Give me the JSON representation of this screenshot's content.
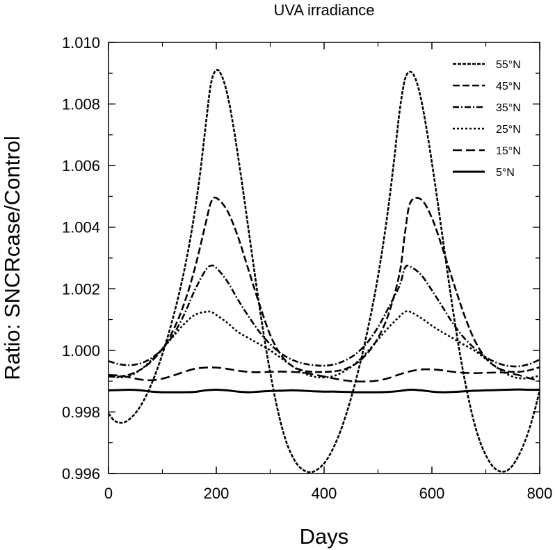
{
  "chart_data": {
    "type": "line",
    "title": "UVA irradiance",
    "xlabel": "Days",
    "ylabel": "Ratio: SNCRcase/Control",
    "xlim": [
      0,
      800
    ],
    "ylim": [
      0.996,
      1.01
    ],
    "xticks": [
      0,
      200,
      400,
      600,
      800
    ],
    "xtick_labels": [
      "0",
      "200",
      "400",
      "600",
      "800"
    ],
    "yticks": [
      0.996,
      0.998,
      1.0,
      1.002,
      1.004,
      1.006,
      1.008,
      1.01
    ],
    "ytick_labels": [
      "0.996",
      "0.998",
      "1.000",
      "1.002",
      "1.004",
      "1.006",
      "1.008",
      "1.010"
    ],
    "grid": false,
    "legend_position": "top-right",
    "series": [
      {
        "name": "55°N",
        "dash": "5,2",
        "width": 2.6,
        "x": [
          0,
          10,
          20,
          30,
          40,
          50,
          60,
          70,
          80,
          90,
          100,
          110,
          120,
          130,
          140,
          150,
          160,
          170,
          180,
          190,
          200,
          210,
          220,
          230,
          240,
          250,
          260,
          270,
          280,
          290,
          300,
          310,
          320,
          330,
          340,
          350,
          360,
          370,
          380,
          390,
          400,
          410,
          420,
          430,
          440,
          450,
          460,
          470,
          480,
          490,
          500,
          510,
          520,
          530,
          540,
          550,
          560,
          570,
          580,
          590,
          600,
          610,
          620,
          630,
          640,
          650,
          660,
          670,
          680,
          690,
          700,
          710,
          720,
          730,
          740,
          750,
          760,
          770,
          780,
          790,
          800
        ],
        "y": [
          0.99795,
          0.99773,
          0.99765,
          0.99767,
          0.99778,
          0.99796,
          0.99821,
          0.99853,
          0.99892,
          0.99937,
          0.99988,
          1.00045,
          1.00108,
          1.00177,
          1.00255,
          1.00345,
          1.0045,
          1.00575,
          1.00725,
          1.00865,
          1.0091,
          1.00892,
          1.00835,
          1.00745,
          1.00635,
          1.00515,
          1.0039,
          1.00265,
          1.00143,
          1.0003,
          0.99928,
          0.99838,
          0.99762,
          0.99702,
          0.9966,
          0.9963,
          0.99613,
          0.99605,
          0.99606,
          0.99616,
          0.99633,
          0.99659,
          0.99694,
          0.99736,
          0.99787,
          0.99845,
          0.9991,
          0.99981,
          1.0006,
          1.00145,
          1.0024,
          1.0035,
          1.00475,
          1.0062,
          1.00775,
          1.0088,
          1.00905,
          1.0088,
          1.00815,
          1.0072,
          1.0061,
          1.0049,
          1.00365,
          1.0024,
          1.0012,
          1.0001,
          0.99912,
          0.99827,
          0.99755,
          0.997,
          0.9966,
          0.9963,
          0.99612,
          0.99606,
          0.9961,
          0.99627,
          0.99655,
          0.99693,
          0.99741,
          0.998,
          0.9987
        ]
      },
      {
        "name": "45°N",
        "dash": "10,4",
        "width": 2.6,
        "x": [
          0,
          20,
          40,
          60,
          80,
          100,
          120,
          140,
          160,
          180,
          190,
          200,
          220,
          240,
          260,
          280,
          300,
          320,
          340,
          360,
          380,
          400,
          420,
          440,
          460,
          480,
          500,
          520,
          540,
          550,
          560,
          580,
          600,
          620,
          640,
          660,
          680,
          700,
          720,
          740,
          760,
          780,
          800
        ],
        "y": [
          0.99915,
          0.99915,
          0.99922,
          0.99938,
          0.99965,
          1.00005,
          1.00065,
          1.0015,
          1.00265,
          1.0041,
          1.0048,
          1.00495,
          1.00455,
          1.0037,
          1.0026,
          1.0015,
          1.0005,
          0.99985,
          0.9995,
          0.99935,
          0.9993,
          0.9993,
          0.99932,
          0.9994,
          0.99958,
          0.9999,
          1.0004,
          1.0012,
          1.0025,
          1.0038,
          1.0048,
          1.0049,
          1.0043,
          1.0033,
          1.0022,
          1.00115,
          1.0003,
          0.99975,
          0.99945,
          0.99932,
          0.9993,
          0.99935,
          0.99945
        ]
      },
      {
        "name": "35°N",
        "dash": "9,3,2,3",
        "width": 2.6,
        "x": [
          0,
          20,
          40,
          60,
          80,
          100,
          120,
          140,
          160,
          180,
          190,
          200,
          220,
          240,
          260,
          280,
          300,
          320,
          340,
          360,
          380,
          400,
          420,
          440,
          460,
          480,
          500,
          520,
          540,
          550,
          560,
          580,
          600,
          620,
          640,
          660,
          680,
          700,
          720,
          740,
          760,
          780,
          800
        ],
        "y": [
          0.99965,
          0.99955,
          0.99952,
          0.99958,
          0.99975,
          1.00005,
          1.0005,
          1.00115,
          1.00195,
          1.0026,
          1.00275,
          1.00268,
          1.00225,
          1.00165,
          1.0011,
          1.0006,
          1.0002,
          0.9999,
          0.9997,
          0.99958,
          0.99952,
          0.9995,
          0.99955,
          0.99968,
          0.9999,
          1.00025,
          1.00075,
          1.0014,
          1.0021,
          1.00268,
          1.00272,
          1.00245,
          1.00195,
          1.0014,
          1.00085,
          1.0004,
          1.00005,
          0.99978,
          0.9996,
          0.9995,
          0.99948,
          0.99955,
          0.9997
        ]
      },
      {
        "name": "25°N",
        "dash": "3,3",
        "width": 2.6,
        "x": [
          0,
          20,
          40,
          60,
          80,
          100,
          120,
          140,
          160,
          180,
          190,
          200,
          220,
          240,
          260,
          280,
          300,
          320,
          340,
          360,
          380,
          400,
          420,
          440,
          460,
          480,
          500,
          520,
          540,
          550,
          560,
          580,
          600,
          620,
          640,
          660,
          680,
          700,
          720,
          740,
          760,
          780,
          800
        ],
        "y": [
          0.99918,
          0.99912,
          0.99918,
          0.99938,
          0.99968,
          1.00005,
          1.00045,
          1.00085,
          1.00115,
          1.00125,
          1.00125,
          1.00115,
          1.0009,
          1.0006,
          1.0004,
          1.0002,
          1.0,
          0.99975,
          0.9995,
          0.99928,
          0.99915,
          0.99912,
          0.99918,
          0.99935,
          0.9996,
          0.99995,
          1.00035,
          1.00075,
          1.0011,
          1.00125,
          1.00125,
          1.00105,
          1.0008,
          1.00058,
          1.00038,
          1.00018,
          0.99998,
          0.99972,
          0.99945,
          0.99922,
          0.9991,
          0.9991,
          0.99918
        ]
      },
      {
        "name": "15°N",
        "dash": "13,6",
        "width": 2.6,
        "x": [
          0,
          20,
          40,
          60,
          80,
          100,
          120,
          140,
          160,
          180,
          200,
          220,
          240,
          260,
          280,
          300,
          320,
          340,
          360,
          380,
          400,
          420,
          440,
          460,
          480,
          500,
          520,
          540,
          560,
          580,
          600,
          620,
          640,
          660,
          680,
          700,
          720,
          740,
          760,
          780,
          800
        ],
        "y": [
          0.9992,
          0.99918,
          0.99912,
          0.99905,
          0.99903,
          0.99908,
          0.99918,
          0.9993,
          0.9994,
          0.99944,
          0.99944,
          0.9994,
          0.99934,
          0.9993,
          0.99929,
          0.9993,
          0.99931,
          0.9993,
          0.99928,
          0.99922,
          0.99915,
          0.99908,
          0.99902,
          0.99899,
          0.99899,
          0.99902,
          0.9991,
          0.99922,
          0.99932,
          0.99938,
          0.99938,
          0.99935,
          0.9993,
          0.99927,
          0.99926,
          0.99927,
          0.99928,
          0.99927,
          0.9992,
          0.9991,
          0.999
        ]
      },
      {
        "name": "5°N",
        "dash": "",
        "width": 3,
        "x": [
          0,
          20,
          40,
          60,
          80,
          100,
          120,
          140,
          160,
          180,
          200,
          220,
          240,
          260,
          280,
          300,
          320,
          340,
          360,
          380,
          400,
          420,
          440,
          460,
          480,
          500,
          520,
          540,
          560,
          580,
          600,
          620,
          640,
          660,
          680,
          700,
          720,
          740,
          760,
          780,
          800
        ],
        "y": [
          0.9987,
          0.99871,
          0.99872,
          0.9987,
          0.99866,
          0.99864,
          0.99864,
          0.99864,
          0.99865,
          0.9987,
          0.99872,
          0.9987,
          0.99866,
          0.99864,
          0.99866,
          0.99868,
          0.99869,
          0.9987,
          0.99869,
          0.99867,
          0.99866,
          0.99866,
          0.99865,
          0.99864,
          0.99864,
          0.99864,
          0.99865,
          0.99868,
          0.99872,
          0.9987,
          0.99866,
          0.99864,
          0.99865,
          0.99867,
          0.99869,
          0.9987,
          0.99871,
          0.99872,
          0.99873,
          0.99872,
          0.99872
        ]
      }
    ]
  }
}
